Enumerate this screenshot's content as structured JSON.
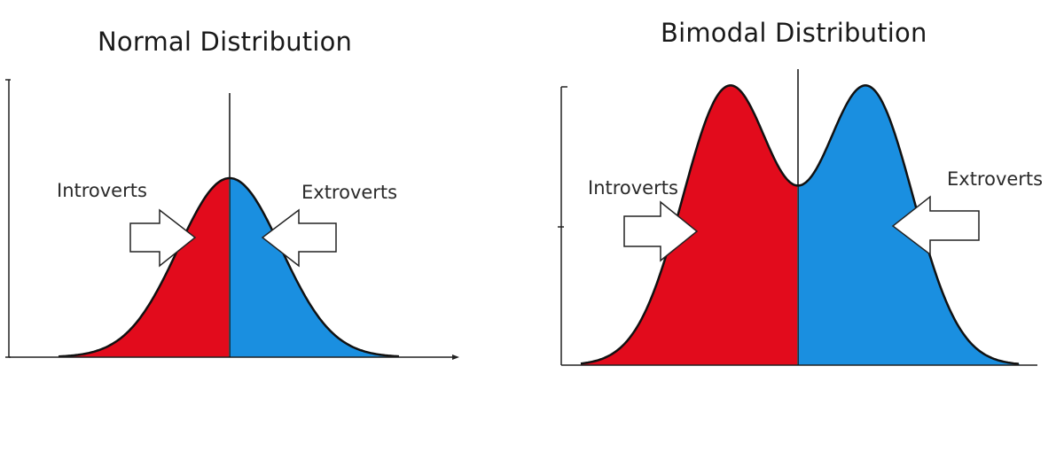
{
  "panels": [
    {
      "title": "Normal Distribution",
      "left_label": "Introverts",
      "right_label": "Extroverts",
      "shape": "unimodal"
    },
    {
      "title": "Bimodal Distribution",
      "left_label": "Introverts",
      "right_label": "Extroverts",
      "shape": "bimodal"
    }
  ],
  "colors": {
    "introverts_fill": "#e20b1c",
    "extroverts_fill": "#1a8fe0",
    "outline": "#111111",
    "arrow_fill": "#ffffff"
  }
}
